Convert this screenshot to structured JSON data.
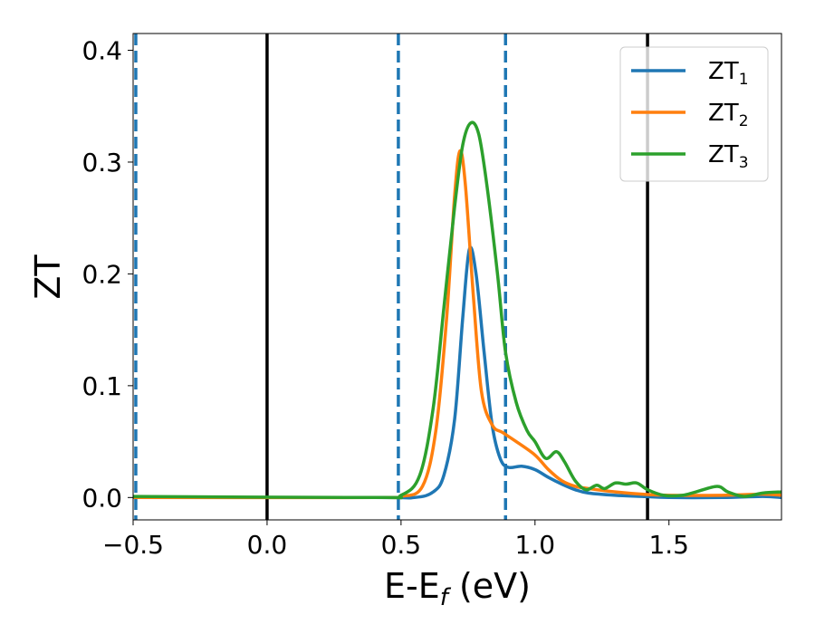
{
  "chart_data": {
    "type": "line",
    "title": "",
    "xlabel": "E-E",
    "xlabel_sub": "f",
    "xlabel_unit": " (eV)",
    "ylabel": "ZT",
    "xlim": [
      -0.5,
      1.92
    ],
    "ylim": [
      -0.02,
      0.415
    ],
    "xticks": [
      -0.5,
      0.0,
      0.5,
      1.0,
      1.5
    ],
    "xtick_labels": [
      "−0.5",
      "0.0",
      "0.5",
      "1.0",
      "1.5"
    ],
    "yticks": [
      0.0,
      0.1,
      0.2,
      0.3,
      0.4
    ],
    "ytick_labels": [
      "0.0",
      "0.1",
      "0.2",
      "0.3",
      "0.4"
    ],
    "grid": false,
    "legend_position": "top-right",
    "vlines": [
      {
        "x": -0.49,
        "style": "dashed",
        "color": "#1f77b4"
      },
      {
        "x": 0.0,
        "style": "solid",
        "color": "#000000"
      },
      {
        "x": 0.49,
        "style": "dashed",
        "color": "#1f77b4"
      },
      {
        "x": 0.89,
        "style": "dashed",
        "color": "#1f77b4"
      },
      {
        "x": 1.42,
        "style": "solid",
        "color": "#000000"
      }
    ],
    "series": [
      {
        "name": "ZT",
        "subscript": "1",
        "color": "#1f77b4",
        "x": [
          -0.5,
          0.4,
          0.55,
          0.62,
          0.66,
          0.7,
          0.73,
          0.755,
          0.78,
          0.81,
          0.84,
          0.87,
          0.9,
          0.95,
          1.0,
          1.05,
          1.1,
          1.15,
          1.2,
          1.3,
          1.4,
          1.5,
          1.7,
          1.85,
          1.92
        ],
        "y": [
          0.0,
          0.0,
          0.0,
          0.005,
          0.02,
          0.07,
          0.16,
          0.222,
          0.2,
          0.13,
          0.065,
          0.035,
          0.027,
          0.028,
          0.025,
          0.018,
          0.012,
          0.007,
          0.004,
          0.002,
          0.001,
          0.0,
          0.0,
          0.001,
          0.0
        ]
      },
      {
        "name": "ZT",
        "subscript": "2",
        "color": "#ff7f0e",
        "x": [
          -0.5,
          0.4,
          0.5,
          0.58,
          0.63,
          0.67,
          0.7,
          0.72,
          0.74,
          0.77,
          0.8,
          0.84,
          0.88,
          0.93,
          1.0,
          1.05,
          1.1,
          1.15,
          1.2,
          1.3,
          1.4,
          1.5,
          1.7,
          1.85,
          1.92
        ],
        "y": [
          0.0,
          0.0,
          0.001,
          0.01,
          0.06,
          0.16,
          0.27,
          0.31,
          0.28,
          0.18,
          0.095,
          0.065,
          0.058,
          0.05,
          0.038,
          0.025,
          0.015,
          0.01,
          0.008,
          0.005,
          0.003,
          0.002,
          0.002,
          0.003,
          0.002
        ]
      },
      {
        "name": "ZT",
        "subscript": "3",
        "color": "#2ca02c",
        "x": [
          -0.5,
          0.4,
          0.5,
          0.57,
          0.62,
          0.66,
          0.7,
          0.73,
          0.76,
          0.79,
          0.82,
          0.86,
          0.89,
          0.93,
          0.97,
          1.0,
          1.04,
          1.08,
          1.11,
          1.15,
          1.19,
          1.23,
          1.26,
          1.3,
          1.34,
          1.38,
          1.42,
          1.48,
          1.55,
          1.6,
          1.68,
          1.72,
          1.78,
          1.85,
          1.92
        ],
        "y": [
          0.001,
          0.0,
          0.002,
          0.02,
          0.08,
          0.17,
          0.26,
          0.315,
          0.335,
          0.325,
          0.28,
          0.2,
          0.13,
          0.085,
          0.06,
          0.05,
          0.035,
          0.041,
          0.032,
          0.015,
          0.007,
          0.011,
          0.008,
          0.013,
          0.012,
          0.013,
          0.007,
          0.002,
          0.002,
          0.005,
          0.01,
          0.005,
          0.001,
          0.004,
          0.005
        ]
      }
    ]
  }
}
